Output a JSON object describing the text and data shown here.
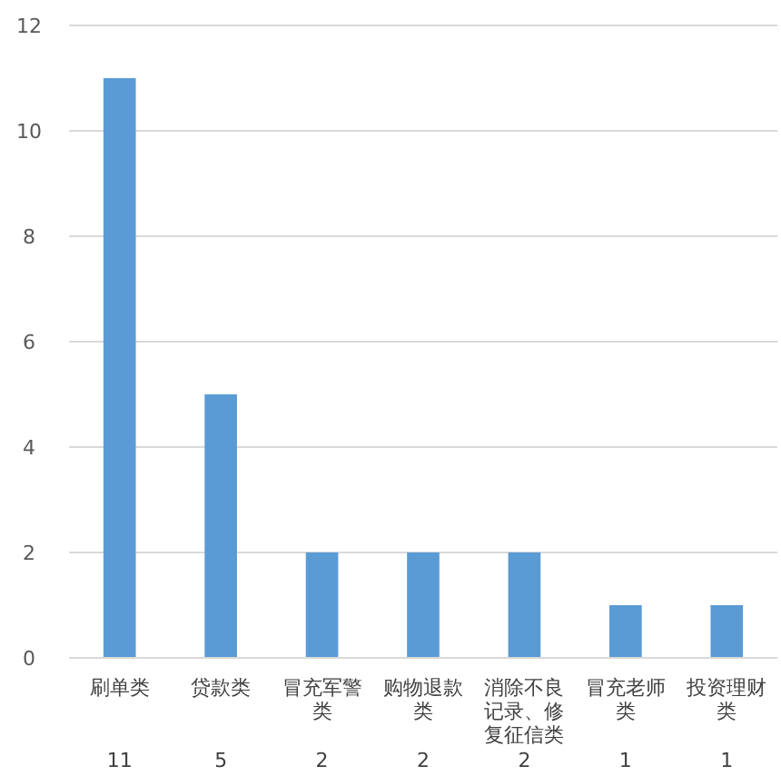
{
  "chart_data": {
    "type": "bar",
    "categories": [
      "刷单类",
      "贷款类",
      "冒充军警类",
      "购物退款类",
      "消除不良记录、修复征信类",
      "冒充老师类",
      "投资理财类"
    ],
    "values": [
      11,
      5,
      2,
      2,
      2,
      1,
      1
    ],
    "color": "#5b9bd5",
    "ylim": [
      0,
      12
    ],
    "yticks": [
      0,
      2,
      4,
      6,
      8,
      10,
      12
    ],
    "grid": "y",
    "data_labels": true
  }
}
